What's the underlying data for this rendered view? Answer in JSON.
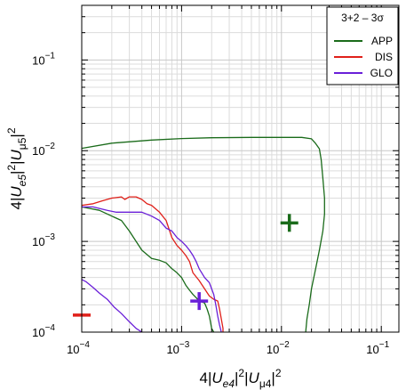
{
  "chart_data": {
    "type": "line",
    "xscale": "log",
    "yscale": "log",
    "xlim": [
      0.0001,
      0.15
    ],
    "ylim": [
      0.0001,
      0.4
    ],
    "grid": true,
    "xlabel_parts": [
      "4|",
      "U",
      "e4",
      "|",
      "2",
      "|",
      "U",
      "μ4",
      "|",
      "2"
    ],
    "ylabel_parts": [
      "4|",
      "U",
      "e5",
      "|",
      "2",
      "|",
      "U",
      "μ5",
      "|",
      "2"
    ],
    "x_ticks": [
      {
        "value": 0.0001,
        "base": "10",
        "exp": "−4"
      },
      {
        "value": 0.001,
        "base": "10",
        "exp": "−3"
      },
      {
        "value": 0.01,
        "base": "10",
        "exp": "−2"
      },
      {
        "value": 0.1,
        "base": "10",
        "exp": "−1"
      }
    ],
    "y_ticks": [
      {
        "value": 0.0001,
        "base": "10",
        "exp": "−4"
      },
      {
        "value": 0.001,
        "base": "10",
        "exp": "−3"
      },
      {
        "value": 0.01,
        "base": "10",
        "exp": "−2"
      },
      {
        "value": 0.1,
        "base": "10",
        "exp": "−1"
      }
    ],
    "legend": {
      "title": "3+2 – 3σ",
      "placement": "top-right",
      "entries": [
        {
          "name": "APP",
          "color": "#1a6b1a"
        },
        {
          "name": "DIS",
          "color": "#e0201a"
        },
        {
          "name": "GLO",
          "color": "#6a1fd8"
        }
      ]
    },
    "series": [
      {
        "name": "APP",
        "color": "#1a6b1a",
        "contours": [
          [
            [
              0.0001,
              0.0106
            ],
            [
              0.0002,
              0.0121
            ],
            [
              0.0005,
              0.0131
            ],
            [
              0.001,
              0.0136
            ],
            [
              0.002,
              0.0139
            ],
            [
              0.005,
              0.014
            ],
            [
              0.01,
              0.014
            ],
            [
              0.016,
              0.014
            ],
            [
              0.02,
              0.0135
            ],
            [
              0.022,
              0.012
            ],
            [
              0.024,
              0.0105
            ],
            [
              0.025,
              0.008
            ],
            [
              0.026,
              0.005
            ],
            [
              0.027,
              0.003
            ],
            [
              0.027,
              0.002
            ],
            [
              0.026,
              0.0013
            ],
            [
              0.024,
              0.0008
            ],
            [
              0.022,
              0.0005
            ],
            [
              0.02,
              0.0003
            ],
            [
              0.019,
              0.0002
            ],
            [
              0.018,
              0.00014
            ],
            [
              0.0175,
              0.0001
            ]
          ],
          [
            [
              0.0001,
              0.0024
            ],
            [
              0.00015,
              0.0022
            ],
            [
              0.0002,
              0.0019
            ],
            [
              0.00025,
              0.0017
            ],
            [
              0.0003,
              0.0013
            ],
            [
              0.00035,
              0.001
            ],
            [
              0.0004,
              0.0008
            ],
            [
              0.0005,
              0.00065
            ],
            [
              0.0006,
              0.00062
            ],
            [
              0.0007,
              0.00058
            ],
            [
              0.0008,
              0.0005
            ],
            [
              0.0009,
              0.00045
            ],
            [
              0.001,
              0.0004
            ],
            [
              0.0011,
              0.00033
            ],
            [
              0.0012,
              0.00029
            ],
            [
              0.0013,
              0.00026
            ],
            [
              0.0014,
              0.00024
            ],
            [
              0.0015,
              0.00022
            ],
            [
              0.0017,
              0.00021
            ],
            [
              0.0018,
              0.00018
            ],
            [
              0.0019,
              0.00015
            ],
            [
              0.002,
              0.00011
            ],
            [
              0.0021,
              0.0001
            ]
          ]
        ]
      },
      {
        "name": "DIS",
        "color": "#e0201a",
        "contours": [
          [
            [
              0.0001,
              0.0025
            ],
            [
              0.00013,
              0.0026
            ],
            [
              0.00016,
              0.0028
            ],
            [
              0.0002,
              0.003
            ],
            [
              0.00025,
              0.0031
            ],
            [
              0.00027,
              0.0029
            ],
            [
              0.0003,
              0.0031
            ],
            [
              0.00035,
              0.0031
            ],
            [
              0.0004,
              0.0029
            ],
            [
              0.00045,
              0.0026
            ],
            [
              0.0005,
              0.0025
            ],
            [
              0.0006,
              0.0021
            ],
            [
              0.0007,
              0.0017
            ],
            [
              0.0008,
              0.0011
            ],
            [
              0.0009,
              0.0009
            ],
            [
              0.001,
              0.0008
            ],
            [
              0.0011,
              0.0007
            ],
            [
              0.0012,
              0.0006
            ],
            [
              0.0013,
              0.00045
            ],
            [
              0.0015,
              0.00037
            ],
            [
              0.0017,
              0.0003
            ],
            [
              0.0019,
              0.00025
            ],
            [
              0.0021,
              0.00023
            ],
            [
              0.0023,
              0.00022
            ],
            [
              0.0024,
              0.00018
            ],
            [
              0.0025,
              0.00014
            ],
            [
              0.0026,
              0.00011
            ],
            [
              0.0026,
              0.0001
            ]
          ],
          [
            [
              0.0001,
              0.000154
            ],
            [
              0.000105,
              0.000154
            ]
          ]
        ]
      },
      {
        "name": "GLO",
        "color": "#6a1fd8",
        "contours": [
          [
            [
              0.0001,
              0.0024
            ],
            [
              0.00013,
              0.0024
            ],
            [
              0.00018,
              0.0022
            ],
            [
              0.00022,
              0.0021
            ],
            [
              0.00028,
              0.0021
            ],
            [
              0.0004,
              0.0021
            ],
            [
              0.0005,
              0.0019
            ],
            [
              0.0006,
              0.0017
            ],
            [
              0.0007,
              0.0014
            ],
            [
              0.0008,
              0.0013
            ],
            [
              0.0009,
              0.0011
            ],
            [
              0.001,
              0.001
            ],
            [
              0.0011,
              0.0009
            ],
            [
              0.0012,
              0.0008
            ],
            [
              0.0013,
              0.0007
            ],
            [
              0.0014,
              0.0006
            ],
            [
              0.0015,
              0.0005
            ],
            [
              0.0017,
              0.0004
            ],
            [
              0.0019,
              0.00035
            ],
            [
              0.0021,
              0.00026
            ],
            [
              0.0022,
              0.0002
            ],
            [
              0.0023,
              0.00015
            ],
            [
              0.0024,
              0.00012
            ],
            [
              0.0025,
              0.0001
            ]
          ],
          [
            [
              0.0001,
              0.00038
            ],
            [
              0.00011,
              0.00036
            ],
            [
              0.00013,
              0.00031
            ],
            [
              0.00015,
              0.00027
            ],
            [
              0.00018,
              0.00023
            ],
            [
              0.00021,
              0.00019
            ],
            [
              0.00025,
              0.00016
            ],
            [
              0.0003,
              0.00013
            ],
            [
              0.00035,
              0.00011
            ],
            [
              0.0004,
              0.0001
            ]
          ]
        ]
      }
    ],
    "best_fit_points": [
      {
        "name": "APP",
        "x": 0.012,
        "y": 0.0016,
        "color": "#1a6b1a"
      },
      {
        "name": "DIS",
        "x": 0.0001,
        "y": 0.000154,
        "color": "#e0201a"
      },
      {
        "name": "GLO",
        "x": 0.0015,
        "y": 0.00022,
        "color": "#6a1fd8"
      }
    ]
  }
}
